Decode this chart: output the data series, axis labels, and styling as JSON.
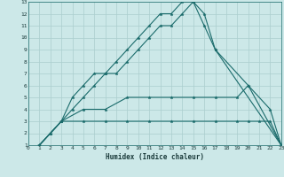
{
  "xlabel": "Humidex (Indice chaleur)",
  "xlim": [
    0,
    23
  ],
  "ylim": [
    1,
    13
  ],
  "xticks": [
    0,
    1,
    2,
    3,
    4,
    5,
    6,
    7,
    8,
    9,
    10,
    11,
    12,
    13,
    14,
    15,
    16,
    17,
    18,
    19,
    20,
    21,
    22,
    23
  ],
  "yticks": [
    1,
    2,
    3,
    4,
    5,
    6,
    7,
    8,
    9,
    10,
    11,
    12,
    13
  ],
  "bg_color": "#cce8e8",
  "grid_color": "#aacece",
  "line_color": "#1a6b6b",
  "lines": [
    {
      "x": [
        1,
        2,
        3,
        4,
        5,
        6,
        7,
        8,
        9,
        10,
        11,
        12,
        13,
        14,
        15,
        16,
        17,
        23
      ],
      "y": [
        1,
        2,
        3,
        5,
        6,
        7,
        7,
        8,
        9,
        10,
        11,
        12,
        12,
        13,
        13,
        12,
        9,
        1
      ]
    },
    {
      "x": [
        1,
        2,
        3,
        4,
        5,
        6,
        7,
        8,
        9,
        10,
        11,
        12,
        13,
        14,
        15,
        16,
        17,
        20,
        23
      ],
      "y": [
        1,
        2,
        3,
        4,
        5,
        6,
        7,
        7,
        8,
        9,
        10,
        11,
        11,
        12,
        13,
        11,
        9,
        6,
        1
      ]
    },
    {
      "x": [
        1,
        3,
        5,
        7,
        9,
        11,
        13,
        15,
        17,
        19,
        20,
        22,
        23
      ],
      "y": [
        1,
        3,
        4,
        4,
        5,
        5,
        5,
        5,
        5,
        5,
        6,
        4,
        1
      ]
    },
    {
      "x": [
        1,
        3,
        5,
        7,
        9,
        11,
        13,
        15,
        17,
        19,
        20,
        21,
        22,
        23
      ],
      "y": [
        1,
        3,
        3,
        3,
        3,
        3,
        3,
        3,
        3,
        3,
        3,
        3,
        3,
        1
      ]
    }
  ]
}
